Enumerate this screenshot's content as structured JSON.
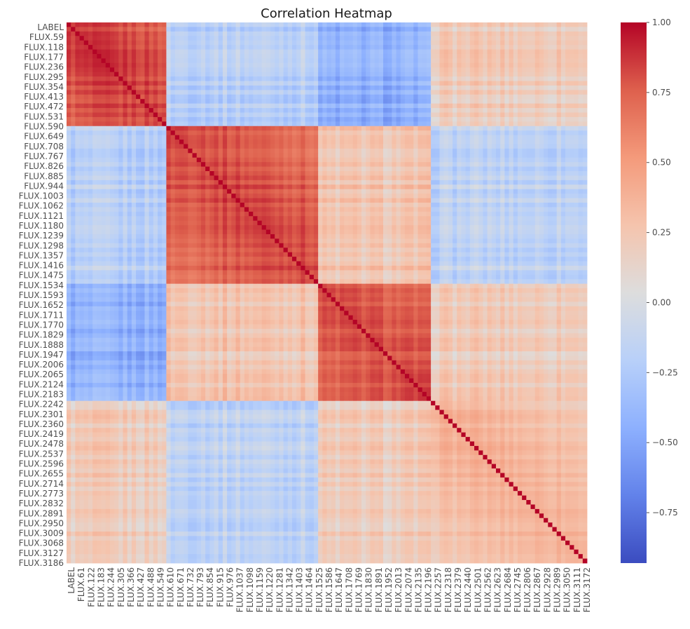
{
  "chart_data": {
    "type": "heatmap",
    "title": "Correlation Heatmap",
    "xlabel": "",
    "ylabel": "",
    "colormap": "coolwarm",
    "value_range": [
      -0.93,
      1.0
    ],
    "colorbar_ticks": [
      {
        "value": 1.0,
        "label": "1.00"
      },
      {
        "value": 0.75,
        "label": "0.75"
      },
      {
        "value": 0.5,
        "label": "0.50"
      },
      {
        "value": 0.25,
        "label": "0.25"
      },
      {
        "value": 0.0,
        "label": "0.00"
      },
      {
        "value": -0.25,
        "label": "−0.25"
      },
      {
        "value": -0.5,
        "label": "−0.50"
      },
      {
        "value": -0.75,
        "label": "−0.75"
      }
    ],
    "y_tick_labels": [
      "LABEL",
      "FLUX.59",
      "FLUX.118",
      "FLUX.177",
      "FLUX.236",
      "FLUX.295",
      "FLUX.354",
      "FLUX.413",
      "FLUX.472",
      "FLUX.531",
      "FLUX.590",
      "FLUX.649",
      "FLUX.708",
      "FLUX.767",
      "FLUX.826",
      "FLUX.885",
      "FLUX.944",
      "FLUX.1003",
      "FLUX.1062",
      "FLUX.1121",
      "FLUX.1180",
      "FLUX.1239",
      "FLUX.1298",
      "FLUX.1357",
      "FLUX.1416",
      "FLUX.1475",
      "FLUX.1534",
      "FLUX.1593",
      "FLUX.1652",
      "FLUX.1711",
      "FLUX.1770",
      "FLUX.1829",
      "FLUX.1888",
      "FLUX.1947",
      "FLUX.2006",
      "FLUX.2065",
      "FLUX.2124",
      "FLUX.2183",
      "FLUX.2242",
      "FLUX.2301",
      "FLUX.2360",
      "FLUX.2419",
      "FLUX.2478",
      "FLUX.2537",
      "FLUX.2596",
      "FLUX.2655",
      "FLUX.2714",
      "FLUX.2773",
      "FLUX.2832",
      "FLUX.2891",
      "FLUX.2950",
      "FLUX.3009",
      "FLUX.3068",
      "FLUX.3127",
      "FLUX.3186"
    ],
    "x_tick_labels": [
      "LABEL",
      "FLUX.61",
      "FLUX.122",
      "FLUX.183",
      "FLUX.244",
      "FLUX.305",
      "FLUX.366",
      "FLUX.427",
      "FLUX.488",
      "FLUX.549",
      "FLUX.610",
      "FLUX.671",
      "FLUX.732",
      "FLUX.793",
      "FLUX.854",
      "FLUX.915",
      "FLUX.976",
      "FLUX.1037",
      "FLUX.1098",
      "FLUX.1159",
      "FLUX.1220",
      "FLUX.1281",
      "FLUX.1342",
      "FLUX.1403",
      "FLUX.1464",
      "FLUX.1525",
      "FLUX.1586",
      "FLUX.1647",
      "FLUX.1708",
      "FLUX.1769",
      "FLUX.1830",
      "FLUX.1891",
      "FLUX.1952",
      "FLUX.2013",
      "FLUX.2074",
      "FLUX.2135",
      "FLUX.2196",
      "FLUX.2257",
      "FLUX.2318",
      "FLUX.2379",
      "FLUX.2440",
      "FLUX.2501",
      "FLUX.2562",
      "FLUX.2623",
      "FLUX.2684",
      "FLUX.2745",
      "FLUX.2806",
      "FLUX.2867",
      "FLUX.2928",
      "FLUX.2989",
      "FLUX.3050",
      "FLUX.3111",
      "FLUX.3172"
    ],
    "block_structure": [
      {
        "range": [
          "LABEL",
          "FLUX.610"
        ],
        "within_correlation": 0.85
      },
      {
        "range": [
          "FLUX.610",
          "FLUX.1534"
        ],
        "within_correlation": 0.85
      },
      {
        "range": [
          "FLUX.1534",
          "FLUX.2242"
        ],
        "within_correlation": 0.8
      },
      {
        "range": [
          "FLUX.2242",
          "FLUX.3186"
        ],
        "within_correlation": 0.4
      }
    ]
  }
}
